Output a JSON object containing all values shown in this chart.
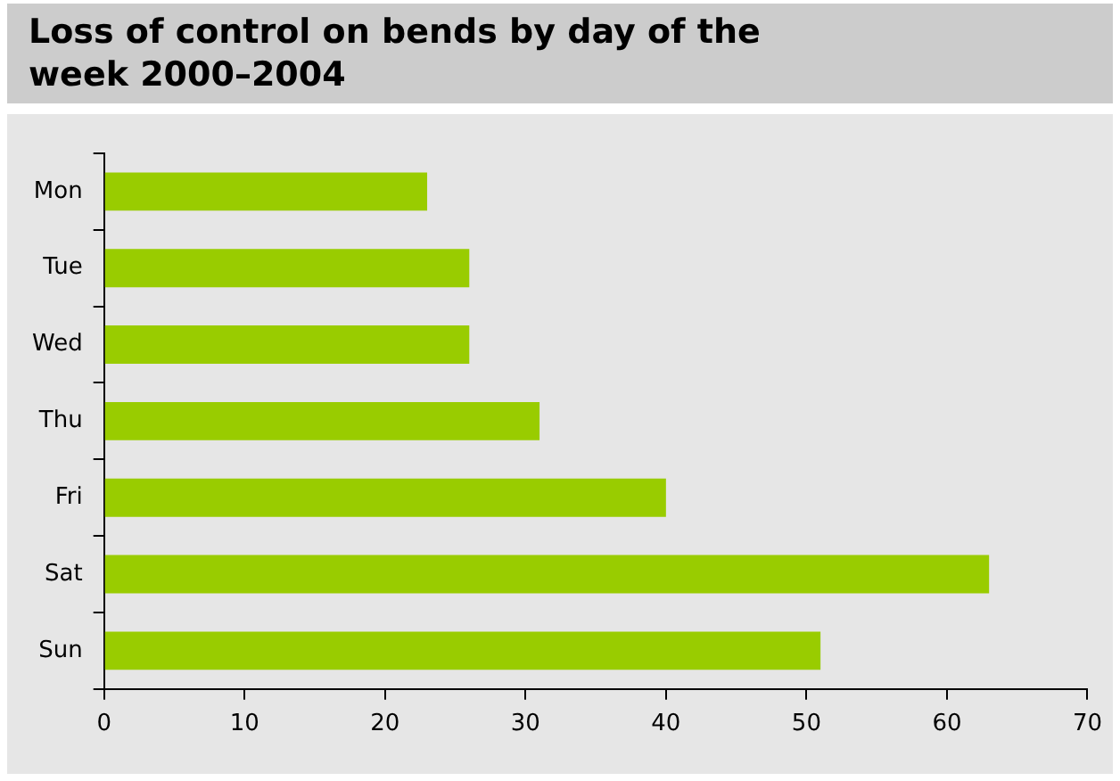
{
  "chart_data": {
    "type": "bar",
    "orientation": "horizontal",
    "title": "Loss of control on bends by day of the week 2000–2004",
    "categories": [
      "Mon",
      "Tue",
      "Wed",
      "Thu",
      "Fri",
      "Sat",
      "Sun"
    ],
    "values": [
      23,
      26,
      26,
      31,
      40,
      63,
      51
    ],
    "color": "#99cc00",
    "xlim": [
      0,
      70
    ],
    "xticks": [
      0,
      10,
      20,
      30,
      40,
      50,
      60,
      70
    ],
    "grid": false,
    "legend": false
  }
}
